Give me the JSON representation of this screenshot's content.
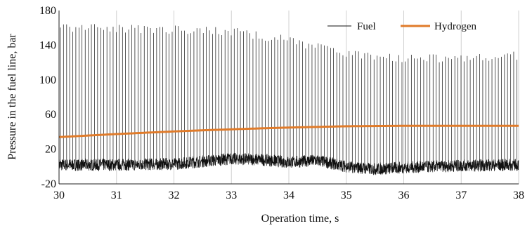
{
  "chart_data": {
    "type": "line",
    "title": "",
    "xlabel": "Operation time, s",
    "ylabel": "Pressure in the fuel line, bar",
    "xlim": [
      30,
      38
    ],
    "ylim": [
      -20,
      180
    ],
    "x_ticks": [
      "30",
      "31",
      "32",
      "33",
      "34",
      "35",
      "36",
      "37",
      "38"
    ],
    "y_ticks": [
      "-20",
      "20",
      "60",
      "100",
      "140",
      "180"
    ],
    "grid": "vertical",
    "legend": {
      "placement": "top-right",
      "entries": [
        "Fuel",
        "Hydrogen"
      ]
    },
    "series": [
      {
        "name": "Fuel",
        "color": "#111111",
        "description_values": {
          "pulse_rate_per_s": 18.5,
          "peak_envelope": {
            "x": [
              30,
              31,
              32,
              33,
              34,
              35,
              36,
              37,
              38
            ],
            "y": [
              160,
              159,
              158,
              156,
              146,
              130,
              124,
              126,
              128
            ]
          },
          "baseline_envelope": {
            "x": [
              30,
              31,
              32,
              33,
              33.5,
              34,
              34.5,
              35,
              35.5,
              36,
              37,
              38
            ],
            "y": [
              2,
              2,
              3,
              9,
              8,
              5,
              7,
              0,
              -3,
              -1,
              1,
              2
            ]
          },
          "noise_amplitude": 7
        }
      },
      {
        "name": "Hydrogen",
        "color": "#e07b2a",
        "x": [
          30,
          31,
          32,
          33,
          34,
          35,
          36,
          37,
          38
        ],
        "y": [
          34,
          37.5,
          40.5,
          43,
          45,
          46.5,
          47,
          47,
          47
        ]
      }
    ]
  }
}
